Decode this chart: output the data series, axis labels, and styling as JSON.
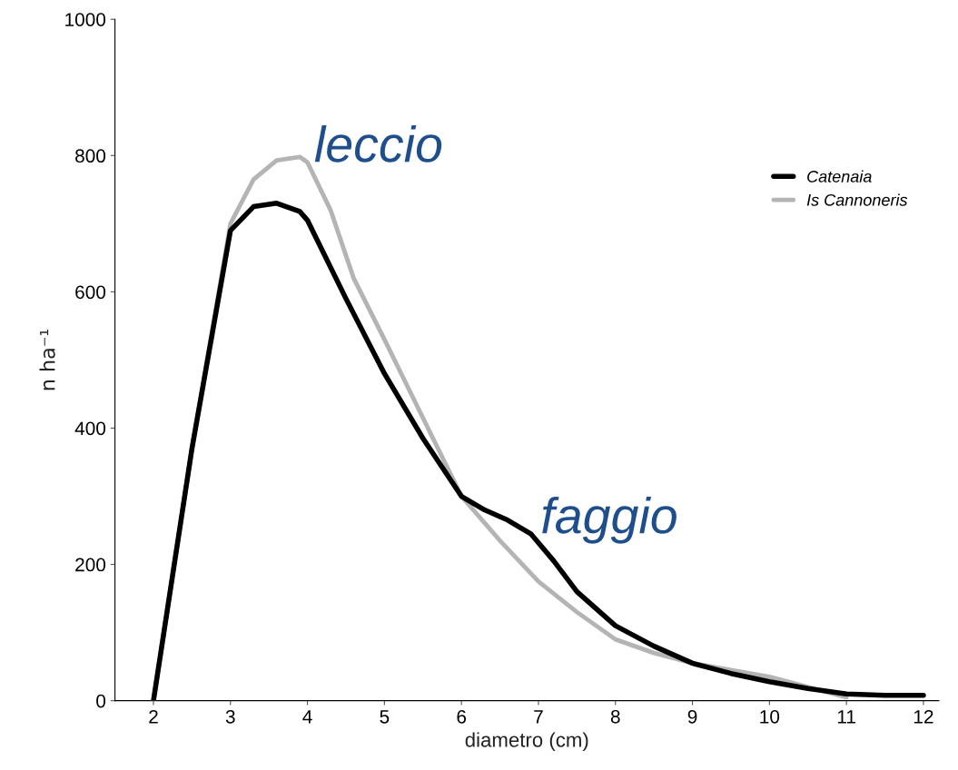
{
  "chart_data": {
    "type": "line",
    "xlabel": "diametro (cm)",
    "ylabel": "n ha⁻¹",
    "xlim": [
      1.5,
      12.2
    ],
    "xticks": [
      2,
      3,
      4,
      5,
      6,
      7,
      8,
      9,
      10,
      11,
      12
    ],
    "ylim": [
      0,
      1000
    ],
    "yticks": [
      0,
      200,
      400,
      600,
      800,
      1000
    ],
    "grid": false,
    "legend": "top right",
    "marker": "none",
    "line_style": "solid",
    "series": [
      {
        "name": "Catenaia",
        "color": "#000000",
        "x": [
          2,
          2.5,
          3,
          3.3,
          3.6,
          3.9,
          4,
          4.5,
          5,
          5.5,
          6,
          6.3,
          6.6,
          6.9,
          7.2,
          7.5,
          8,
          8.5,
          9,
          9.5,
          10,
          10.5,
          11,
          11.5,
          12
        ],
        "values": [
          0,
          370,
          690,
          725,
          730,
          718,
          705,
          590,
          480,
          385,
          300,
          280,
          265,
          245,
          205,
          160,
          110,
          80,
          55,
          40,
          28,
          18,
          10,
          8,
          8
        ]
      },
      {
        "name": "Is Cannoneris",
        "color": "#b4b4b4",
        "x": [
          2,
          2.5,
          3,
          3.3,
          3.6,
          3.9,
          4,
          4.3,
          4.6,
          5,
          5.5,
          6,
          6.5,
          7,
          7.5,
          8,
          8.5,
          9,
          9.5,
          10,
          10.5,
          11
        ],
        "values": [
          0,
          370,
          700,
          765,
          793,
          798,
          790,
          720,
          620,
          530,
          415,
          300,
          235,
          175,
          130,
          90,
          70,
          55,
          45,
          35,
          20,
          5
        ]
      }
    ],
    "annotations": [
      "leccio",
      "faggio"
    ]
  }
}
